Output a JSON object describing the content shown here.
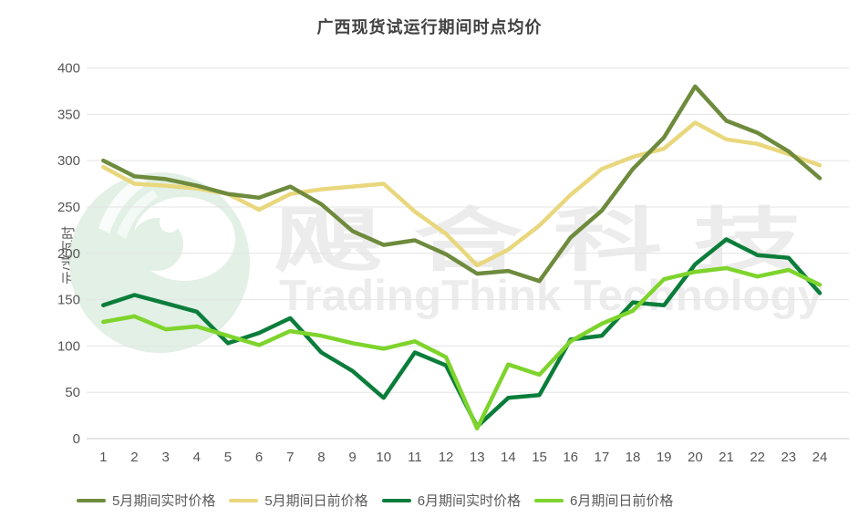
{
  "title": "广西现货试运行期间时点均价",
  "y_axis_label": "元/兆瓦时",
  "watermark": {
    "cn_text": "飓 合 科 技",
    "en_text": "TradingThink Technology",
    "text_color": "#ececec",
    "logo_color": "#e2f0e5",
    "logo_name": "swirl-bird-logo"
  },
  "axis": {
    "tick_color": "#565656",
    "grid_color": "#e4e4e4",
    "axis_line_color": "#c9c9c9"
  },
  "chart_data": {
    "type": "line",
    "title": "广西现货试运行期间时点均价",
    "xlabel": "",
    "ylabel": "元/兆瓦时",
    "x": [
      1,
      2,
      3,
      4,
      5,
      6,
      7,
      8,
      9,
      10,
      11,
      12,
      13,
      14,
      15,
      16,
      17,
      18,
      19,
      20,
      21,
      22,
      23,
      24
    ],
    "ylim": [
      0,
      400
    ],
    "y_ticks": [
      0,
      50,
      100,
      150,
      200,
      250,
      300,
      350,
      400
    ],
    "grid": true,
    "legend_position": "bottom",
    "series": [
      {
        "name": "5月期间实时价格",
        "color": "#6e8b3d",
        "values": [
          300,
          283,
          280,
          273,
          264,
          260,
          272,
          253,
          224,
          209,
          214,
          199,
          178,
          181,
          170,
          217,
          246,
          291,
          325,
          380,
          343,
          330,
          310,
          281
        ]
      },
      {
        "name": "5月期间日前价格",
        "color": "#e9d77d",
        "values": [
          293,
          275,
          273,
          270,
          264,
          247,
          264,
          269,
          272,
          275,
          245,
          221,
          187,
          204,
          230,
          263,
          291,
          304,
          313,
          341,
          323,
          318,
          307,
          295
        ]
      },
      {
        "name": "6月期间实时价格",
        "color": "#0b7d3b",
        "values": [
          144,
          155,
          146,
          137,
          103,
          114,
          130,
          93,
          73,
          44,
          93,
          79,
          13,
          44,
          47,
          107,
          111,
          147,
          144,
          188,
          215,
          198,
          195,
          157
        ]
      },
      {
        "name": "6月期间日前价格",
        "color": "#7ed42c",
        "values": [
          126,
          132,
          118,
          121,
          111,
          101,
          116,
          111,
          103,
          97,
          105,
          88,
          11,
          80,
          69,
          105,
          124,
          138,
          172,
          180,
          184,
          175,
          182,
          166
        ]
      }
    ]
  }
}
